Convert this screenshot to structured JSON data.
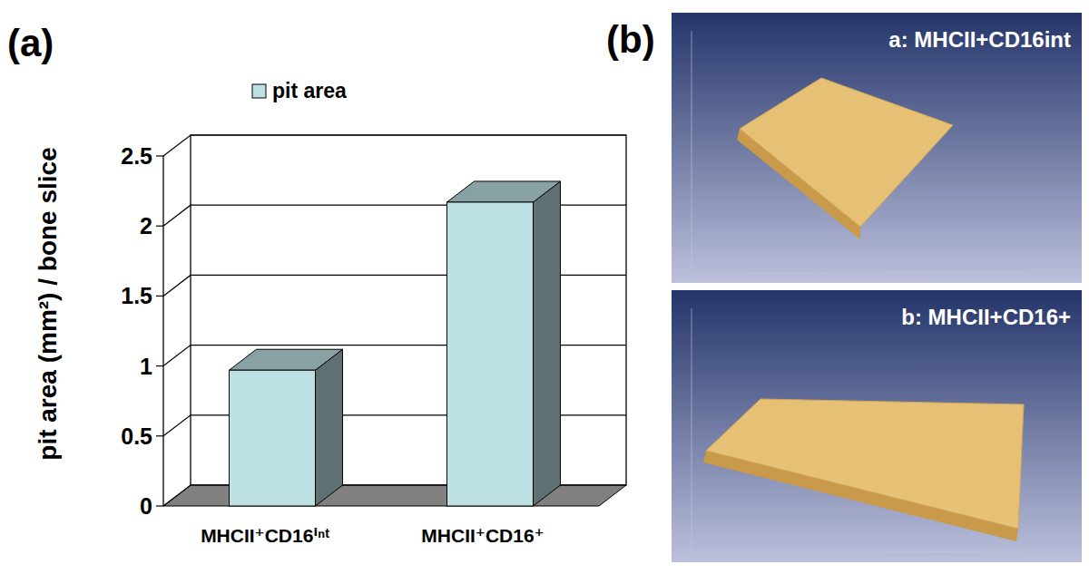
{
  "chart_data": {
    "type": "bar",
    "axis_label_y": "pit area (mm²) / bone slice",
    "categories": [
      "MHCII⁺CD16ⁱⁿᵗ",
      "MHCII⁺CD16⁺"
    ],
    "series": [
      {
        "name": "pit area",
        "color": "#bde0e3",
        "values": [
          0.97,
          2.17
        ]
      }
    ],
    "ylim": [
      0,
      2.5
    ],
    "yticks": [
      0,
      0.5,
      1,
      1.5,
      2,
      2.5
    ],
    "grid": true,
    "legend": "top"
  },
  "panels": {
    "left": "(a)",
    "right": "(b)"
  },
  "images": [
    {
      "title": "a: MHCII+CD16int"
    },
    {
      "title": "b: MHCII+CD16+"
    }
  ]
}
